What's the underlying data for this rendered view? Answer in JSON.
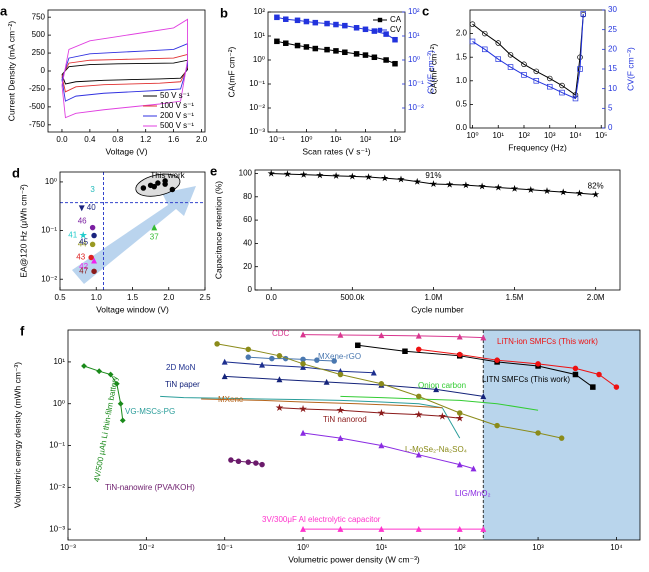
{
  "chart_data": [
    {
      "type": "line",
      "label": "a",
      "xlabel": "Voltage (V)",
      "ylabel": "Current Density (mA cm⁻²)",
      "xlim": [
        -0.2,
        2.05
      ],
      "ylim": [
        -850,
        850
      ],
      "xlog": false,
      "ylog": false,
      "xticks": [
        {
          "value": 0,
          "label": "0.0"
        },
        0.4,
        0.8,
        1.2,
        1.6,
        {
          "value": 2,
          "label": "2.0"
        }
      ],
      "yticks": [
        -750,
        -500,
        -250,
        0,
        250,
        500,
        750
      ],
      "legend": "lower right",
      "x": [
        0,
        0.1,
        0.4,
        0.8,
        1.2,
        1.6,
        1.8,
        1.8,
        1.7,
        1.4,
        1.0,
        0.6,
        0.2,
        0.05,
        0
      ],
      "series": [
        {
          "name": "50 V s⁻¹",
          "color": "#000000",
          "marker": "none",
          "values": [
            -50,
            60,
            90,
            100,
            105,
            110,
            150,
            20,
            -100,
            -110,
            -120,
            -130,
            -150,
            -180,
            -50
          ]
        },
        {
          "name": "100 V s⁻¹",
          "color": "#e03030",
          "marker": "none",
          "values": [
            -80,
            110,
            150,
            160,
            170,
            180,
            230,
            50,
            -150,
            -170,
            -180,
            -190,
            -220,
            -290,
            -80
          ]
        },
        {
          "name": "200 V s⁻¹",
          "color": "#3030e0",
          "marker": "none",
          "values": [
            -120,
            180,
            240,
            260,
            280,
            300,
            380,
            80,
            -250,
            -270,
            -290,
            -310,
            -350,
            -420,
            -120
          ]
        },
        {
          "name": "500 V s⁻¹",
          "color": "#e040e0",
          "marker": "none",
          "values": [
            -200,
            300,
            420,
            480,
            540,
            600,
            720,
            150,
            -420,
            -460,
            -500,
            -540,
            -590,
            -650,
            -200
          ]
        }
      ]
    },
    {
      "type": "line",
      "label": "b",
      "xlabel": "Scan rates (V s⁻¹)",
      "ylabel": "CA(mF cm⁻²)",
      "y2label": "CV(F cm⁻³)",
      "y2color": "#2233dd",
      "xlim": [
        0.05,
        2180
      ],
      "ylim": [
        0.001,
        100
      ],
      "y2lim": [
        0.001,
        100
      ],
      "xlog": true,
      "ylog": true,
      "y2log": true,
      "xticks": [
        {
          "value": 0.1,
          "label": "10⁻¹"
        },
        {
          "value": 1,
          "label": "10⁰"
        },
        {
          "value": 10,
          "label": "10¹"
        },
        {
          "value": 100,
          "label": "10²"
        },
        {
          "value": 1000,
          "label": "10³"
        }
      ],
      "yticks": [
        {
          "value": 0.001,
          "label": "10⁻³"
        },
        {
          "value": 0.01,
          "label": "10⁻²"
        },
        {
          "value": 0.1,
          "label": "10⁻¹"
        },
        {
          "value": 1,
          "label": "10⁰"
        },
        {
          "value": 10,
          "label": "10¹"
        },
        {
          "value": 100,
          "label": "10²"
        }
      ],
      "y2ticks": [
        {
          "value": 0.01,
          "label": "10⁻²"
        },
        {
          "value": 0.1,
          "label": "10⁻¹"
        },
        {
          "value": 1,
          "label": "10⁰"
        },
        {
          "value": 10,
          "label": "10¹"
        },
        {
          "value": 100,
          "label": "10²"
        }
      ],
      "legend": "upper right",
      "x": [
        0.1,
        0.2,
        0.5,
        1,
        2,
        5,
        10,
        20,
        50,
        100,
        200,
        500,
        1000
      ],
      "series": [
        {
          "name": "CA",
          "color": "#000000",
          "marker": "square",
          "values": [
            6,
            5,
            4,
            3.5,
            3,
            2.7,
            2.4,
            2.1,
            1.8,
            1.6,
            1.3,
            1.0,
            0.7
          ]
        },
        {
          "name": "CV",
          "color": "#2233dd",
          "marker": "square",
          "axis": "y2",
          "values": [
            60,
            50,
            45,
            40,
            36,
            33,
            30,
            27,
            22,
            19,
            16,
            12,
            7
          ]
        }
      ]
    },
    {
      "type": "line",
      "label": "c",
      "xlabel": "Frequency (Hz)",
      "ylabel": "CA(mF cm⁻²)",
      "y2label": "CV(F cm⁻³)",
      "y2color": "#2233dd",
      "xlim": [
        0.8,
        140000
      ],
      "ylim": [
        0,
        2.5
      ],
      "y2lim": [
        0,
        30
      ],
      "xlog": true,
      "ylog": false,
      "y2log": false,
      "xticks": [
        {
          "value": 1,
          "label": "10⁰"
        },
        {
          "value": 10,
          "label": "10¹"
        },
        {
          "value": 100,
          "label": "10²"
        },
        {
          "value": 1000,
          "label": "10³"
        },
        {
          "value": 10000,
          "label": "10⁴"
        },
        {
          "value": 100000,
          "label": "10⁵"
        }
      ],
      "yticks": [
        {
          "value": 0,
          "label": "0.0"
        },
        0.5,
        {
          "value": 1,
          "label": "1.0"
        },
        1.5,
        {
          "value": 2,
          "label": "2.0"
        }
      ],
      "y2ticks": [
        0,
        5,
        10,
        15,
        20,
        25,
        30
      ],
      "x": [
        1,
        3,
        10,
        30,
        100,
        300,
        1000,
        3000,
        10000,
        15000,
        20000
      ],
      "series": [
        {
          "color": "#000000",
          "marker": "circle",
          "open": true,
          "values": [
            2.2,
            2.0,
            1.8,
            1.55,
            1.35,
            1.2,
            1.05,
            0.9,
            0.7,
            1.5,
            2.4
          ]
        },
        {
          "color": "#2233dd",
          "marker": "square",
          "open": true,
          "axis": "y2",
          "values": [
            22,
            20,
            17.5,
            15.5,
            13.5,
            12,
            10.5,
            9,
            7.5,
            15,
            29
          ]
        }
      ]
    },
    {
      "type": "scatter",
      "label": "d",
      "xlabel": "Voltage window (V)",
      "ylabel": "EA@120 Hz (μWh cm⁻²)",
      "xlim": [
        0.5,
        2.5
      ],
      "ylim": [
        0.006,
        1.6
      ],
      "xlog": false,
      "ylog": true,
      "xticks": [
        0.5,
        {
          "value": 1,
          "label": "1.0"
        },
        1.5,
        {
          "value": 2,
          "label": "2.0"
        },
        2.5
      ],
      "yticks": [
        {
          "value": 0.01,
          "label": "10⁻²"
        },
        {
          "value": 0.1,
          "label": "10⁻¹"
        },
        {
          "value": 1,
          "label": "10⁰"
        }
      ],
      "series": [
        {
          "name": "This work",
          "color": "#000000",
          "marker": "circle",
          "x": [
            1.65,
            1.75,
            1.85,
            1.95,
            2.05,
            1.8,
            1.95
          ],
          "values": [
            0.75,
            0.85,
            0.95,
            1.05,
            0.7,
            0.8,
            0.9
          ]
        },
        {
          "name": "3",
          "color": "#22bbbb",
          "marker": "none",
          "x": [
            0.95
          ],
          "values": [
            0.68
          ]
        },
        {
          "name": "40",
          "color": "#1a237e",
          "marker": "tridown",
          "x": [
            0.8
          ],
          "values": [
            0.29
          ]
        },
        {
          "name": "46",
          "color": "#7b1fa2",
          "marker": "circle",
          "x": [
            0.95
          ],
          "values": [
            0.115
          ]
        },
        {
          "name": "41",
          "color": "#22cccc",
          "marker": "star",
          "x": [
            0.82
          ],
          "values": [
            0.08
          ]
        },
        {
          "name": "44",
          "color": "#999922",
          "marker": "circle",
          "x": [
            0.95
          ],
          "values": [
            0.052
          ]
        },
        {
          "name": "45",
          "color": "#1a237e",
          "marker": "circle",
          "x": [
            0.97
          ],
          "values": [
            0.079
          ]
        },
        {
          "name": "37",
          "color": "#33bb33",
          "marker": "triangle",
          "x": [
            1.8
          ],
          "values": [
            0.115
          ]
        },
        {
          "name": "43",
          "color": "#dd2222",
          "marker": "circle",
          "x": [
            0.93
          ],
          "values": [
            0.028
          ]
        },
        {
          "name": "42",
          "color": "#ee22ee",
          "marker": "triangle",
          "x": [
            0.97
          ],
          "values": [
            0.024
          ]
        },
        {
          "name": "47",
          "color": "#8b1a1a",
          "marker": "circle",
          "x": [
            0.97
          ],
          "values": [
            0.0145
          ]
        }
      ]
    },
    {
      "type": "line",
      "label": "e",
      "xlabel": "Cycle number",
      "ylabel": "Capacitance retention (%)",
      "xlim": [
        -100000,
        2150000
      ],
      "ylim": [
        0,
        103
      ],
      "xlog": false,
      "ylog": false,
      "xticks": [
        {
          "value": 0,
          "label": "0.0"
        },
        {
          "value": 500000,
          "label": "500.0k"
        },
        {
          "value": 1000000,
          "label": "1.0M"
        },
        {
          "value": 1500000,
          "label": "1.5M"
        },
        {
          "value": 2000000,
          "label": "2.0M"
        }
      ],
      "yticks": [
        0,
        20,
        40,
        60,
        80,
        100
      ],
      "x": [
        0,
        100000,
        200000,
        300000,
        400000,
        500000,
        600000,
        700000,
        800000,
        900000,
        1000000,
        1100000,
        1200000,
        1300000,
        1400000,
        1500000,
        1600000,
        1700000,
        1800000,
        1900000,
        2000000
      ],
      "series": [
        {
          "color": "#000000",
          "marker": "star",
          "values": [
            100,
            99.5,
            99,
            98.5,
            98,
            97.5,
            97,
            96,
            95,
            93,
            91,
            90.5,
            90,
            89,
            88,
            87,
            86,
            85,
            84,
            83,
            82
          ],
          "value_labels": [
            null,
            null,
            null,
            null,
            null,
            null,
            null,
            null,
            null,
            null,
            "91%",
            null,
            null,
            null,
            null,
            null,
            null,
            null,
            null,
            null,
            "82%"
          ]
        }
      ]
    },
    {
      "type": "line",
      "label": "f",
      "xlabel": "Volumetric power density (W cm⁻³)",
      "ylabel": "Volumetric energy density (mWh cm⁻³)",
      "xlim": [
        0.001,
        20000
      ],
      "ylim": [
        0.00055,
        58
      ],
      "xlog": true,
      "ylog": true,
      "xticks": [
        {
          "value": 0.001,
          "label": "10⁻³"
        },
        {
          "value": 0.01,
          "label": "10⁻²"
        },
        {
          "value": 0.1,
          "label": "10⁻¹"
        },
        {
          "value": 1,
          "label": "10⁰"
        },
        {
          "value": 10,
          "label": "10¹"
        },
        {
          "value": 100,
          "label": "10²"
        },
        {
          "value": 1000,
          "label": "10³"
        },
        {
          "value": 10000,
          "label": "10⁴"
        }
      ],
      "yticks": [
        {
          "value": 0.001,
          "label": "10⁻³"
        },
        {
          "value": 0.01,
          "label": "10⁻²"
        },
        {
          "value": 0.1,
          "label": "10⁻¹"
        },
        {
          "value": 1,
          "label": "10⁰"
        },
        {
          "value": 10,
          "label": "10¹"
        }
      ],
      "highlight": {
        "x": [
          200,
          20000
        ],
        "color": "#b9d5ec"
      },
      "series": [
        {
          "name": "4V/500 μAh Li thin-film battery",
          "color": "#1a8a1a",
          "marker": "diamond",
          "x": [
            0.0016,
            0.0025,
            0.0035,
            0.0042,
            0.0047,
            0.005
          ],
          "values": [
            8,
            6,
            5,
            3,
            1,
            0.4
          ]
        },
        {
          "name": "VG-MSCs-PG",
          "color": "#2a9d9a",
          "marker": "none",
          "x": [
            0.015,
            0.03,
            0.1,
            0.3,
            1,
            3,
            10,
            30,
            60,
            100
          ],
          "values": [
            1.5,
            1.4,
            1.35,
            1.3,
            1.25,
            1.2,
            1.1,
            1.0,
            0.8,
            0.15
          ]
        },
        {
          "name": "CDC",
          "color": "#d9368f",
          "marker": "triangle",
          "x": [
            1,
            3,
            10,
            30,
            100,
            200
          ],
          "values": [
            45,
            44,
            43,
            42,
            40,
            38
          ]
        },
        {
          "name": "MXene-rGO",
          "color": "#4a78b0",
          "marker": "circle",
          "x": [
            0.2,
            0.4,
            0.6,
            1,
            1.5,
            2.5
          ],
          "values": [
            13,
            12,
            12,
            11.5,
            11,
            10.5
          ]
        },
        {
          "name": "2D MoN",
          "color": "#1d2f8f",
          "marker": "triangle",
          "x": [
            0.1,
            0.3,
            1,
            3,
            8
          ],
          "values": [
            10,
            8.5,
            7.5,
            6,
            5.5
          ]
        },
        {
          "name": "TiN paper",
          "color": "#14237a",
          "marker": "triangle",
          "x": [
            0.1,
            0.5,
            2,
            10,
            50,
            200
          ],
          "values": [
            4.5,
            3.8,
            3.3,
            2.8,
            2.2,
            1.5
          ]
        },
        {
          "name": "MXene",
          "color": "#b5651d",
          "marker": "none",
          "x": [
            0.05,
            0.3,
            1,
            5,
            20,
            60
          ],
          "values": [
            1.3,
            1.2,
            1.1,
            1.0,
            0.9,
            0.8
          ]
        },
        {
          "name": "TiN nanorod",
          "color": "#8b1a1a",
          "marker": "star",
          "x": [
            0.5,
            1,
            3,
            10,
            30,
            60,
            100
          ],
          "values": [
            0.8,
            0.75,
            0.7,
            0.6,
            0.55,
            0.5,
            0.45
          ]
        },
        {
          "name": "Onion carbon",
          "color": "#33cc33",
          "marker": "none",
          "x": [
            3,
            10,
            30,
            100,
            300,
            1000
          ],
          "values": [
            1.5,
            1.4,
            1.3,
            1.2,
            1.0,
            0.7
          ]
        },
        {
          "name": "L-MoSe₂-Na₂SO₄",
          "color": "#8b8b1a",
          "marker": "circle",
          "x": [
            0.08,
            0.2,
            0.5,
            1,
            3,
            10,
            30,
            100,
            300,
            1000,
            2000
          ],
          "values": [
            27,
            20,
            14,
            9,
            5,
            3,
            1.5,
            0.6,
            0.3,
            0.2,
            0.15
          ]
        },
        {
          "name": "LIG/MnO₂",
          "color": "#8a2be2",
          "marker": "triangle",
          "x": [
            1,
            3,
            10,
            30,
            100,
            150
          ],
          "values": [
            0.2,
            0.15,
            0.1,
            0.06,
            0.035,
            0.028
          ]
        },
        {
          "name": "TiN-nanowire (PVA/KOH)",
          "color": "#6b1a6b",
          "marker": "circle",
          "x": [
            0.12,
            0.15,
            0.2,
            0.25,
            0.3
          ],
          "values": [
            0.045,
            0.042,
            0.04,
            0.038,
            0.035
          ]
        },
        {
          "name": "3V/300μF Al electrolytic capacitor",
          "color": "#ff33cc",
          "marker": "triangle",
          "x": [
            1,
            3,
            10,
            30,
            100,
            200
          ],
          "values": [
            0.001,
            0.001,
            0.001,
            0.001,
            0.001,
            0.001
          ]
        },
        {
          "name": "LITN SMFCs (This work)",
          "color": "#000000",
          "marker": "square",
          "x": [
            5,
            20,
            100,
            300,
            1000,
            3000,
            5000
          ],
          "values": [
            25,
            18,
            14,
            10,
            8,
            5,
            2.5
          ]
        },
        {
          "name": "LiTN-ion SMFCs (This work)",
          "color": "#ee1111",
          "marker": "circle",
          "x": [
            30,
            100,
            300,
            1000,
            3000,
            6000,
            10000
          ],
          "values": [
            20,
            15,
            11,
            9,
            7,
            5,
            2.5
          ]
        }
      ]
    }
  ]
}
